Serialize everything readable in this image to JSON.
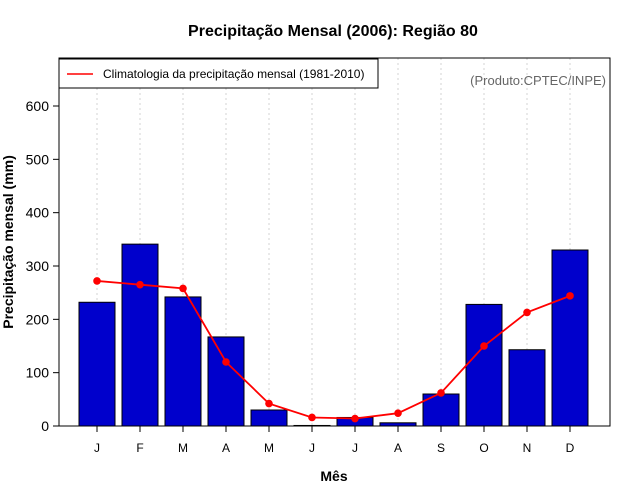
{
  "chart_data": {
    "type": "bar",
    "title": "Precipitação Mensal (2006): Região 80",
    "xlabel": "Mês",
    "ylabel": "Precipitação mensal (mm)",
    "ylim": [
      0,
      690
    ],
    "yticks": [
      0,
      100,
      200,
      300,
      400,
      500,
      600
    ],
    "categories": [
      "J",
      "F",
      "M",
      "A",
      "M",
      "J",
      "J",
      "A",
      "S",
      "O",
      "N",
      "D"
    ],
    "series": [
      {
        "name": "Precipitação mensal 2006",
        "type": "bar",
        "color": "#0000cc",
        "values": [
          232,
          341,
          242,
          167,
          30,
          1,
          16,
          6,
          60,
          228,
          143,
          330
        ]
      },
      {
        "name": "Climatologia da precipitação mensal (1981-2010)",
        "type": "line",
        "color": "#ff0000",
        "values": [
          272,
          265,
          258,
          120,
          42,
          16,
          14,
          24,
          62,
          150,
          213,
          244
        ]
      }
    ],
    "legend": {
      "position": "top-left",
      "entries": [
        "Climatologia da precipitação mensal (1981-2010)"
      ]
    },
    "annotation": "(Produto:CPTEC/INPE)",
    "grid": true
  }
}
